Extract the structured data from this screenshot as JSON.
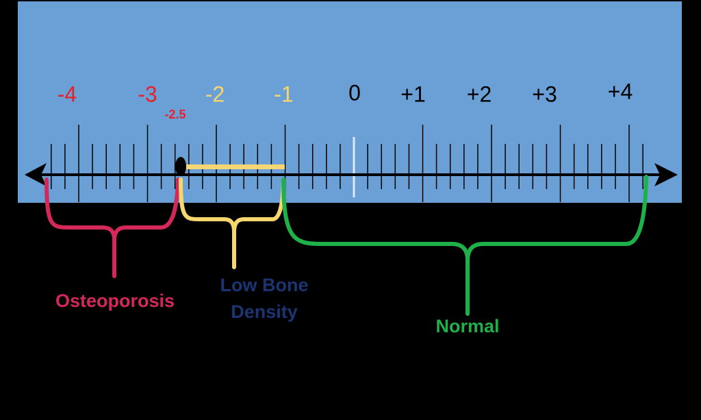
{
  "scale": {
    "labels": [
      {
        "text": "-4",
        "color": "#e8202a"
      },
      {
        "text": "-3",
        "color": "#e8202a"
      },
      {
        "text": "-2",
        "color": "#f5d76e"
      },
      {
        "text": "-1",
        "color": "#f5d76e"
      },
      {
        "text": "0",
        "color": "#000000"
      },
      {
        "text": "+1",
        "color": "#000000"
      },
      {
        "text": "+2",
        "color": "#000000"
      },
      {
        "text": "+3",
        "color": "#000000"
      },
      {
        "text": "+4",
        "color": "#000000"
      }
    ]
  },
  "marker": {
    "label": "-2.5"
  },
  "ranges": [
    {
      "lines": [
        "Osteoporosis"
      ]
    },
    {
      "lines": [
        "Low Bone",
        "Density"
      ]
    },
    {
      "lines": [
        "Normal"
      ]
    }
  ]
}
